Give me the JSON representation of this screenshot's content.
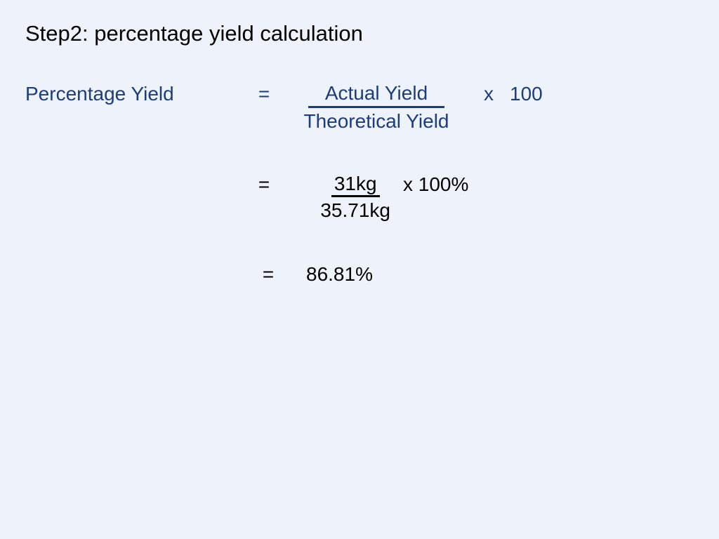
{
  "title": "Step2: percentage yield calculation",
  "formula": {
    "lhs": "Percentage Yield",
    "eq": "=",
    "numerator": "Actual Yield",
    "denominator": "Theoretical Yield",
    "times": "x",
    "hundred": "100"
  },
  "substitution": {
    "eq": "=",
    "numerator": "31kg",
    "denominator": "35.71kg",
    "post": "x 100%"
  },
  "result": {
    "eq": "=",
    "value": "86.81%"
  },
  "colors": {
    "background": "#eef2fa",
    "text": "#000000",
    "accent_blue": "#1d3c7a"
  },
  "typography": {
    "font_family": "Comic Sans MS",
    "title_fontsize_pt": 23,
    "body_fontsize_pt": 21
  }
}
